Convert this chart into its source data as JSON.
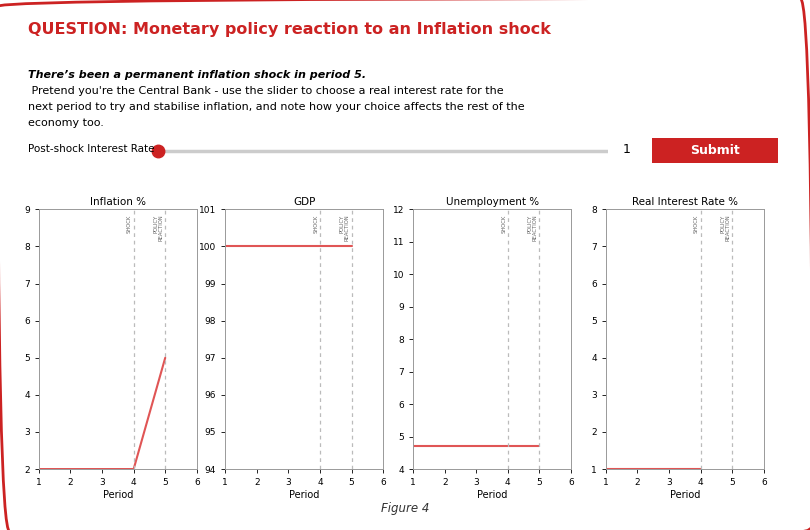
{
  "title": "QUESTION: Monetary policy reaction to an Inflation shock",
  "subtitle_bold": "There’s been a permanent inflation shock in period 5.",
  "subtitle_normal": " Pretend you're the Central Bank - use the slider to choose a real interest rate for the next period to try and stabilise inflation, and note how your choice affects the rest of the economy too.",
  "slider_label": "Post-shock Interest Rate",
  "slider_value": "1",
  "submit_label": "Submit",
  "figure_label": "Figure 4",
  "background_color": "#ffffff",
  "border_color": "#cc2222",
  "title_color": "#cc2222",
  "line_color": "#e05555",
  "dashed_color": "#bbbbbb",
  "submit_bg": "#cc2222",
  "submit_text_color": "#ffffff",
  "inflation": {
    "title": "Inflation %",
    "xlabel": "Period",
    "periods": [
      1,
      2,
      3,
      4,
      5
    ],
    "values": [
      2,
      2,
      2,
      2,
      5
    ],
    "ylim": [
      2,
      9
    ],
    "yticks": [
      2,
      3,
      4,
      5,
      6,
      7,
      8,
      9
    ],
    "xlim": [
      1,
      6
    ],
    "xticks": [
      1,
      2,
      3,
      4,
      5,
      6
    ],
    "shock_x": 4,
    "policy_x": 5,
    "shock_label": "SHOCK",
    "policy_label": "POLICY\nREACTION"
  },
  "gdp": {
    "title": "GDP",
    "xlabel": "Period",
    "periods": [
      1,
      2,
      3,
      4,
      5
    ],
    "values": [
      100,
      100,
      100,
      100,
      100
    ],
    "ylim": [
      94,
      101
    ],
    "yticks": [
      94,
      95,
      96,
      97,
      98,
      99,
      100,
      101
    ],
    "xlim": [
      1,
      6
    ],
    "xticks": [
      1,
      2,
      3,
      4,
      5,
      6
    ],
    "shock_x": 4,
    "policy_x": 5,
    "shock_label": "SHOCK",
    "policy_label": "POLICY\nREACTION"
  },
  "unemployment": {
    "title": "Unemployment %",
    "xlabel": "Period",
    "periods": [
      1,
      2,
      3,
      4,
      5
    ],
    "values": [
      4.7,
      4.7,
      4.7,
      4.7,
      4.7
    ],
    "ylim": [
      4,
      12
    ],
    "yticks": [
      4,
      5,
      6,
      7,
      8,
      9,
      10,
      11,
      12
    ],
    "xlim": [
      1,
      6
    ],
    "xticks": [
      1,
      2,
      3,
      4,
      5,
      6
    ],
    "shock_x": 4,
    "policy_x": 5,
    "shock_label": "SHOCK",
    "policy_label": "POLICY\nREACTION"
  },
  "real_interest": {
    "title": "Real Interest Rate %",
    "xlabel": "Period",
    "periods": [
      1,
      2,
      3,
      4
    ],
    "values": [
      1,
      1,
      1,
      1
    ],
    "ylim": [
      1,
      8
    ],
    "yticks": [
      1,
      2,
      3,
      4,
      5,
      6,
      7,
      8
    ],
    "xlim": [
      1,
      6
    ],
    "xticks": [
      1,
      2,
      3,
      4,
      5,
      6
    ],
    "shock_x": 4,
    "policy_x": 5,
    "shock_label": "SHOCK",
    "policy_label": "POLICY\nREACTION"
  }
}
